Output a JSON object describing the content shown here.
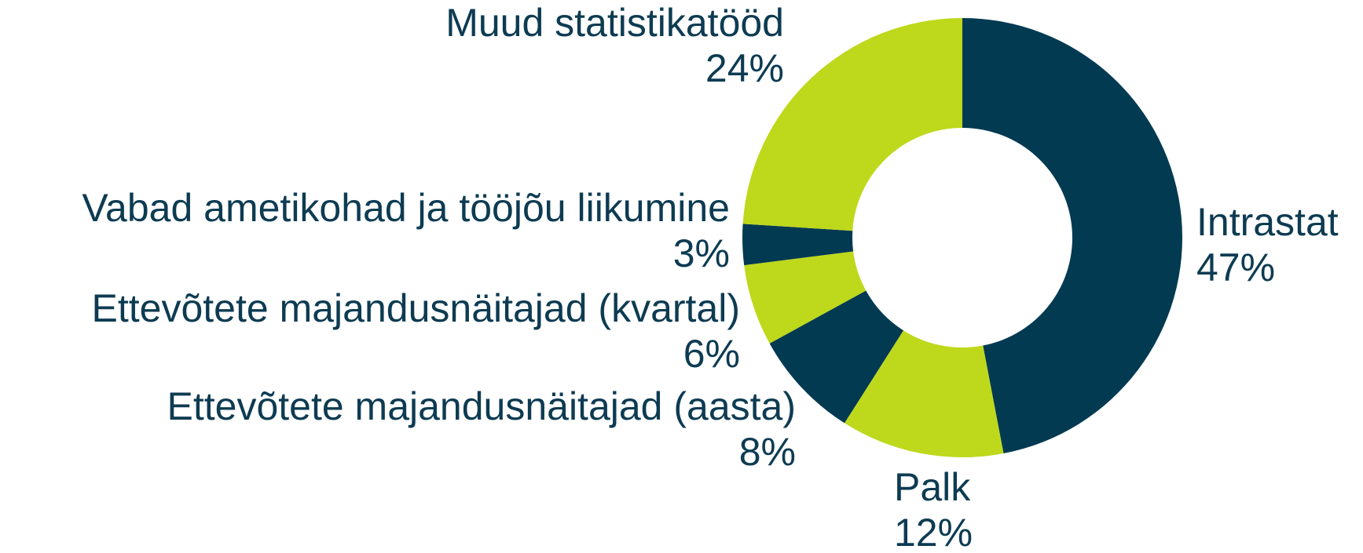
{
  "chart_data": {
    "type": "donut",
    "categories": [
      "Intrastat",
      "Palk",
      "Ettevõtete majandusnäitajad (aasta)",
      "Ettevõtete majandusnäitajad (kvartal)",
      "Vabad ametikohad ja tööjõu liikumine",
      "Muud statistikatööd"
    ],
    "values": [
      47,
      12,
      8,
      6,
      3,
      24
    ],
    "value_labels": [
      "47%",
      "12%",
      "8%",
      "6%",
      "3%",
      "24%"
    ],
    "colors": [
      "#023a52",
      "#bed81c",
      "#023a52",
      "#bed81c",
      "#023a52",
      "#bed81c"
    ]
  }
}
